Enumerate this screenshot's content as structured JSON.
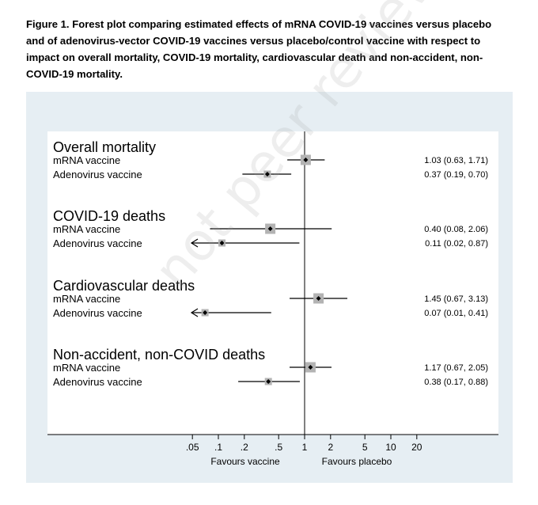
{
  "figure": {
    "caption": "Figure 1. Forest plot comparing estimated effects of mRNA COVID-19 vaccines versus placebo and of adenovirus-vector COVID-19 vaccines versus placebo/control vaccine with respect to impact on overall mortality, COVID-19 mortality, cardiovascular death and non-accident, non-COVID-19 mortality.",
    "watermark": "not peer reviewed"
  },
  "chart_data": {
    "type": "forest",
    "x_scale": "log",
    "xlim": [
      0.05,
      20
    ],
    "x_ticks": [
      ".05",
      ".1",
      ".2",
      ".5",
      "1",
      "2",
      "5",
      "10",
      "20"
    ],
    "x_tick_values": [
      0.05,
      0.1,
      0.2,
      0.5,
      1,
      2,
      5,
      10,
      20
    ],
    "x_labels": {
      "left": "Favours vaccine",
      "right": "Favours placebo"
    },
    "reference_line": 1,
    "groups": [
      {
        "title": "Overall mortality",
        "rows": [
          {
            "label": "mRNA vaccine",
            "estimate": 1.03,
            "lower": 0.63,
            "upper": 1.71,
            "text": "1.03 (0.63, 1.71)",
            "lower_truncated": false
          },
          {
            "label": "Adenovirus vaccine",
            "estimate": 0.37,
            "lower": 0.19,
            "upper": 0.7,
            "text": "0.37 (0.19, 0.70)",
            "lower_truncated": false
          }
        ]
      },
      {
        "title": "COVID-19 deaths",
        "rows": [
          {
            "label": "mRNA vaccine",
            "estimate": 0.4,
            "lower": 0.08,
            "upper": 2.06,
            "text": "0.40 (0.08, 2.06)",
            "lower_truncated": false
          },
          {
            "label": "Adenovirus vaccine",
            "estimate": 0.11,
            "lower": 0.02,
            "upper": 0.87,
            "text": "0.11 (0.02, 0.87)",
            "lower_truncated": true
          }
        ]
      },
      {
        "title": "Cardiovascular deaths",
        "rows": [
          {
            "label": "mRNA vaccine",
            "estimate": 1.45,
            "lower": 0.67,
            "upper": 3.13,
            "text": "1.45 (0.67, 3.13)",
            "lower_truncated": false
          },
          {
            "label": "Adenovirus vaccine",
            "estimate": 0.07,
            "lower": 0.01,
            "upper": 0.41,
            "text": "0.07 (0.01, 0.41)",
            "lower_truncated": true
          }
        ]
      },
      {
        "title": "Non-accident, non-COVID deaths",
        "rows": [
          {
            "label": "mRNA vaccine",
            "estimate": 1.17,
            "lower": 0.67,
            "upper": 2.05,
            "text": "1.17 (0.67, 2.05)",
            "lower_truncated": false
          },
          {
            "label": "Adenovirus vaccine",
            "estimate": 0.38,
            "lower": 0.17,
            "upper": 0.88,
            "text": "0.38 (0.17, 0.88)",
            "lower_truncated": false
          }
        ]
      }
    ],
    "colors": {
      "panel_background": "#e6eef3",
      "plot_background": "#ffffff",
      "marker_box": "#b3b3b3",
      "line": "#000000"
    }
  }
}
